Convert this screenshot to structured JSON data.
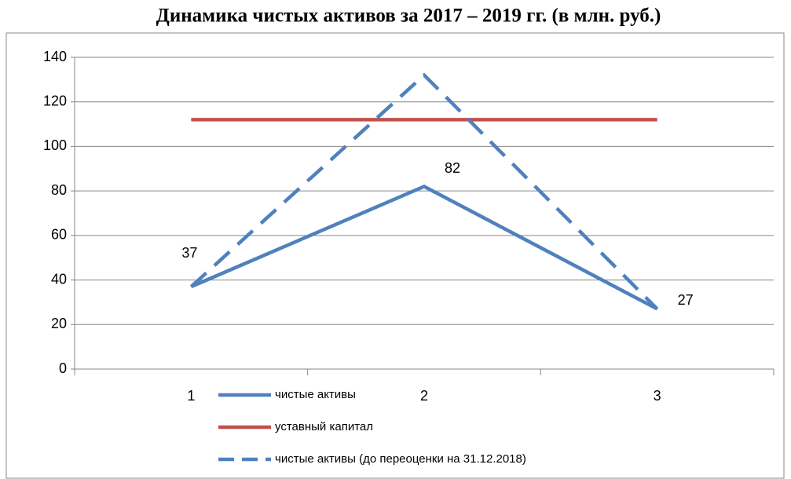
{
  "chart_data": {
    "type": "line",
    "title": "Динамика чистых активов за 2017 – 2019 гг. (в млн. руб.)",
    "categories": [
      "1",
      "2",
      "3"
    ],
    "series": [
      {
        "name": "чистые активы",
        "color": "#4f81bd",
        "dash": "solid",
        "data_labels": true,
        "values": [
          37,
          82,
          27
        ]
      },
      {
        "name": "уставный капитал",
        "color": "#c0504d",
        "dash": "solid",
        "values": [
          112,
          112,
          112
        ]
      },
      {
        "name": "чистые активы (до переоценки на 31.12.2018)",
        "color": "#4f81bd",
        "dash": "dashed",
        "values": [
          37,
          132,
          27
        ]
      }
    ],
    "ylim": [
      0,
      140
    ],
    "yticks": [
      0,
      20,
      40,
      60,
      80,
      100,
      120,
      140
    ],
    "grid": true,
    "legend": "bottom"
  }
}
